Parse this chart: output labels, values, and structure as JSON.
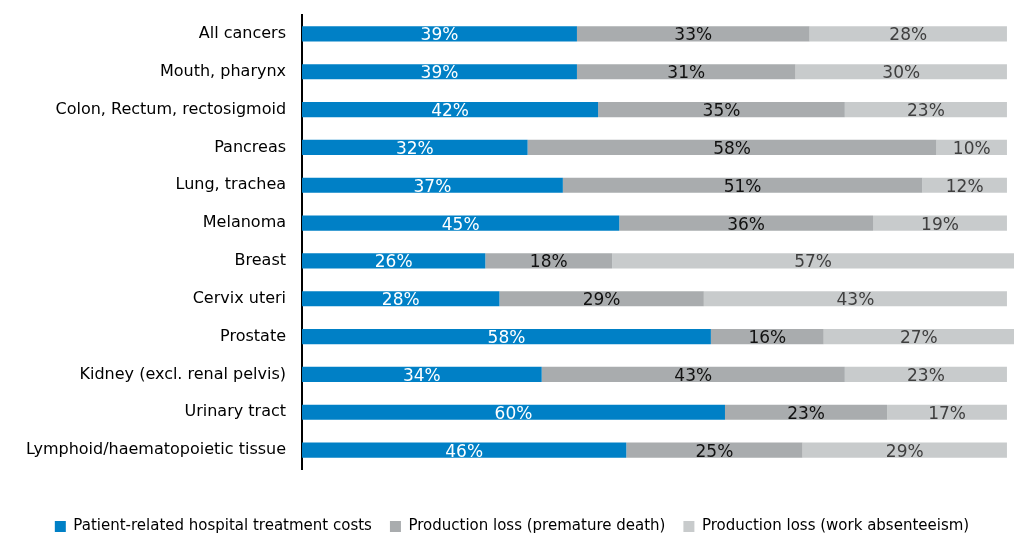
{
  "chart_data": {
    "type": "bar",
    "orientation": "horizontal",
    "stacked": true,
    "legend": "bottom",
    "tick_labels": "y",
    "categories": [
      "All cancers",
      "Mouth, pharynx",
      "Colon, Rectum, rectosigmoid",
      "Pancreas",
      "Lung, trachea",
      "Melanoma",
      "Breast",
      "Cervix uteri",
      "Prostate",
      "Kidney (excl. renal pelvis)",
      "Urinary tract",
      "Lymphoid/haematopoietic tissue"
    ],
    "series": [
      {
        "name": "Patient-related hospital treatment costs",
        "color": "#0080c6",
        "values": [
          39,
          39,
          42,
          32,
          37,
          45,
          26,
          28,
          58,
          34,
          60,
          46
        ],
        "value_labels": [
          "39%",
          "39%",
          "42%",
          "32%",
          "37%",
          "45%",
          "26%",
          "28%",
          "58%",
          "34%",
          "60%",
          "46%"
        ]
      },
      {
        "name": "Production loss (premature death)",
        "color": "#a9acae",
        "values": [
          33,
          31,
          35,
          58,
          51,
          36,
          18,
          29,
          16,
          43,
          23,
          25
        ],
        "value_labels": [
          "33%",
          "31%",
          "35%",
          "58%",
          "51%",
          "36%",
          "18%",
          "29%",
          "16%",
          "43%",
          "23%",
          "25%"
        ]
      },
      {
        "name": "Production loss (work absenteeism)",
        "color": "#c8cbcc",
        "values": [
          28,
          30,
          23,
          10,
          12,
          19,
          57,
          43,
          27,
          23,
          17,
          29
        ],
        "value_labels": [
          "28%",
          "30%",
          "23%",
          "10%",
          "12%",
          "19%",
          "57%",
          "43%",
          "27%",
          "23%",
          "17%",
          "29%"
        ]
      }
    ]
  }
}
